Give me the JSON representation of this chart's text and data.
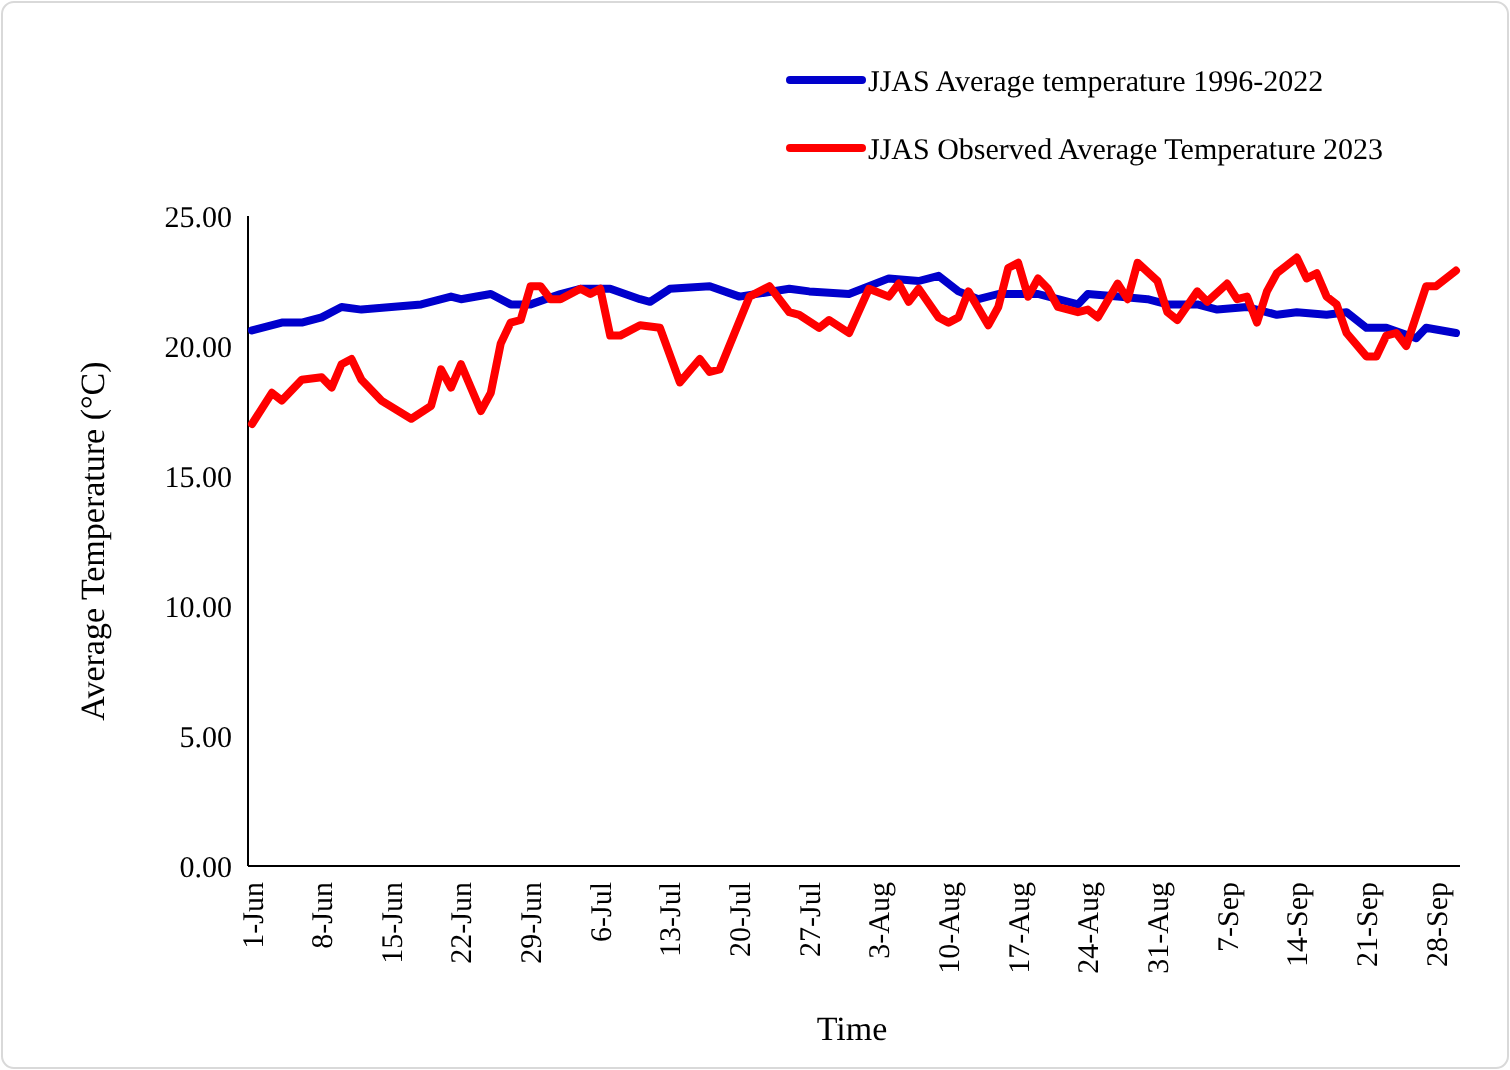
{
  "chart_data": {
    "type": "line",
    "xlabel": "Time",
    "ylabel": "Average Temperature (°C)",
    "legend": "top right",
    "marker": "none",
    "line_style": "solid",
    "grid": false,
    "xlim": [
      "--06-01",
      "--09-30"
    ],
    "xticks": [
      {
        "value": "--06-01",
        "label": "1-Jun"
      },
      {
        "value": "--06-08",
        "label": "8-Jun"
      },
      {
        "value": "--06-15",
        "label": "15-Jun"
      },
      {
        "value": "--06-22",
        "label": "22-Jun"
      },
      {
        "value": "--06-29",
        "label": "29-Jun"
      },
      {
        "value": "--07-06",
        "label": "6-Jul"
      },
      {
        "value": "--07-13",
        "label": "13-Jul"
      },
      {
        "value": "--07-20",
        "label": "20-Jul"
      },
      {
        "value": "--07-27",
        "label": "27-Jul"
      },
      {
        "value": "--08-03",
        "label": "3-Aug"
      },
      {
        "value": "--08-10",
        "label": "10-Aug"
      },
      {
        "value": "--08-17",
        "label": "17-Aug"
      },
      {
        "value": "--08-24",
        "label": "24-Aug"
      },
      {
        "value": "--08-31",
        "label": "31-Aug"
      },
      {
        "value": "--09-07",
        "label": "7-Sep"
      },
      {
        "value": "--09-14",
        "label": "14-Sep"
      },
      {
        "value": "--09-21",
        "label": "21-Sep"
      },
      {
        "value": "--09-28",
        "label": "28-Sep"
      }
    ],
    "ylim": [
      0,
      25
    ],
    "yticks": [
      {
        "value": 0,
        "label": "0.00"
      },
      {
        "value": 5,
        "label": "5.00"
      },
      {
        "value": 10,
        "label": "10.00"
      },
      {
        "value": 15,
        "label": "15.00"
      },
      {
        "value": 20,
        "label": "20.00"
      },
      {
        "value": 25,
        "label": "25.00"
      }
    ],
    "series": [
      {
        "name": "JJAS Average temperature 1996-2022",
        "color": "#0000cc",
        "x": [
          "--06-01",
          "--06-04",
          "--06-06",
          "--06-08",
          "--06-10",
          "--06-12",
          "--06-15",
          "--06-18",
          "--06-21",
          "--06-22",
          "--06-25",
          "--06-27",
          "--06-29",
          "--07-02",
          "--07-04",
          "--07-07",
          "--07-10",
          "--07-11",
          "--07-13",
          "--07-17",
          "--07-20",
          "--07-25",
          "--07-27",
          "--07-31",
          "--08-04",
          "--08-07",
          "--08-09",
          "--08-11",
          "--08-13",
          "--08-15",
          "--08-17",
          "--08-19",
          "--08-21",
          "--08-23",
          "--08-24",
          "--08-27",
          "--08-30",
          "--09-01",
          "--09-04",
          "--09-06",
          "--09-09",
          "--09-12",
          "--09-14",
          "--09-17",
          "--09-19",
          "--09-21",
          "--09-23",
          "--09-26",
          "--09-27",
          "--09-30"
        ],
        "values": [
          20.6,
          20.9,
          20.9,
          21.1,
          21.5,
          21.4,
          21.5,
          21.6,
          21.9,
          21.8,
          22.0,
          21.6,
          21.6,
          22.0,
          22.2,
          22.2,
          21.8,
          21.7,
          22.2,
          22.3,
          21.9,
          22.2,
          22.1,
          22.0,
          22.6,
          22.5,
          22.7,
          22.1,
          21.8,
          22.0,
          22.0,
          22.0,
          21.8,
          21.6,
          22.0,
          21.9,
          21.8,
          21.6,
          21.6,
          21.4,
          21.5,
          21.2,
          21.3,
          21.2,
          21.3,
          20.7,
          20.7,
          20.3,
          20.7,
          20.5
        ]
      },
      {
        "name": "JJAS Observed Average Temperature 2023",
        "color": "#ff0000",
        "x": [
          "--06-01",
          "--06-03",
          "--06-04",
          "--06-06",
          "--06-08",
          "--06-09",
          "--06-10",
          "--06-11",
          "--06-12",
          "--06-14",
          "--06-17",
          "--06-19",
          "--06-20",
          "--06-21",
          "--06-22",
          "--06-24",
          "--06-25",
          "--06-26",
          "--06-27",
          "--06-28",
          "--06-29",
          "--06-30",
          "--07-01",
          "--07-02",
          "--07-04",
          "--07-05",
          "--07-06",
          "--07-07",
          "--07-08",
          "--07-10",
          "--07-12",
          "--07-14",
          "--07-16",
          "--07-17",
          "--07-18",
          "--07-21",
          "--07-23",
          "--07-25",
          "--07-26",
          "--07-28",
          "--07-29",
          "--07-31",
          "--08-02",
          "--08-04",
          "--08-05",
          "--08-06",
          "--08-07",
          "--08-09",
          "--08-10",
          "--08-11",
          "--08-12",
          "--08-14",
          "--08-15",
          "--08-16",
          "--08-17",
          "--08-18",
          "--08-19",
          "--08-20",
          "--08-21",
          "--08-23",
          "--08-24",
          "--08-25",
          "--08-27",
          "--08-28",
          "--08-29",
          "--08-31",
          "--09-01",
          "--09-02",
          "--09-04",
          "--09-05",
          "--09-07",
          "--09-08",
          "--09-09",
          "--09-10",
          "--09-11",
          "--09-12",
          "--09-14",
          "--09-15",
          "--09-16",
          "--09-17",
          "--09-18",
          "--09-19",
          "--09-21",
          "--09-22",
          "--09-23",
          "--09-24",
          "--09-25",
          "--09-27",
          "--09-28",
          "--09-30"
        ],
        "values": [
          17.0,
          18.2,
          17.9,
          18.7,
          18.8,
          18.4,
          19.3,
          19.5,
          18.7,
          17.9,
          17.2,
          17.7,
          19.1,
          18.4,
          19.3,
          17.5,
          18.2,
          20.1,
          20.9,
          21.0,
          22.3,
          22.3,
          21.8,
          21.8,
          22.2,
          22.0,
          22.2,
          20.4,
          20.4,
          20.8,
          20.7,
          18.6,
          19.5,
          19.0,
          19.1,
          21.9,
          22.3,
          21.3,
          21.2,
          20.7,
          21.0,
          20.5,
          22.2,
          21.9,
          22.4,
          21.7,
          22.2,
          21.1,
          20.9,
          21.1,
          22.1,
          20.8,
          21.5,
          23.0,
          23.2,
          21.9,
          22.6,
          22.2,
          21.5,
          21.3,
          21.4,
          21.1,
          22.4,
          21.8,
          23.2,
          22.5,
          21.3,
          21.0,
          22.1,
          21.7,
          22.4,
          21.8,
          21.9,
          20.9,
          22.1,
          22.8,
          23.4,
          22.6,
          22.8,
          21.9,
          21.6,
          20.5,
          19.6,
          19.6,
          20.4,
          20.5,
          20.0,
          22.3,
          22.3,
          22.9
        ]
      }
    ]
  }
}
